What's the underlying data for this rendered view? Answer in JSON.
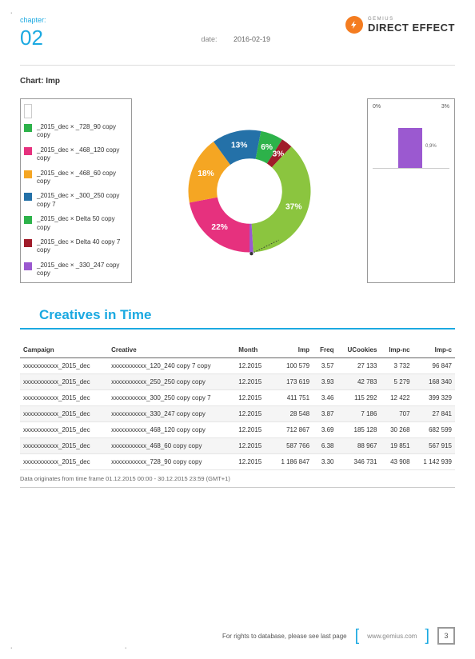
{
  "header": {
    "chapter_label": "chapter:",
    "chapter_num": "02",
    "date_label": "date:",
    "date_value": "2016-02-19",
    "logo_sub": "GEMIUS",
    "logo_main": "DIRECT EFFECT"
  },
  "chart": {
    "title": "Chart: Imp",
    "type": "donut",
    "legend": [
      {
        "color": "#2db24a",
        "label": "_2015_dec × _728_90 copy copy"
      },
      {
        "color": "#e6317e",
        "label": "_2015_dec × _468_120 copy copy"
      },
      {
        "color": "#f5a623",
        "label": "_2015_dec × _468_60 copy copy"
      },
      {
        "color": "#2471a8",
        "label": "_2015_dec × _300_250 copy copy 7"
      },
      {
        "color": "#2db24a",
        "label": "_2015_dec × Delta 50 copy copy"
      },
      {
        "color": "#a01c2a",
        "label": "_2015_dec × Delta 40 copy 7 copy"
      },
      {
        "color": "#9b59d0",
        "label": "_2015_dec × _330_247 copy copy"
      }
    ],
    "slices": [
      {
        "label": "22%",
        "value": 22,
        "color": "#e6317e"
      },
      {
        "label": "18%",
        "value": 18,
        "color": "#f5a623"
      },
      {
        "label": "13%",
        "value": 13,
        "color": "#2471a8"
      },
      {
        "label": "6%",
        "value": 6,
        "color": "#2db24a"
      },
      {
        "label": "3%",
        "value": 3,
        "color": "#a01c2a"
      },
      {
        "label": "37%",
        "value": 37,
        "color": "#8bc53f"
      },
      {
        "label": "",
        "value": 1,
        "color": "#9b59d0"
      }
    ],
    "inner_radius_pct": 48,
    "mini": {
      "left_label": "0%",
      "right_label": "3%",
      "bar_value_pct": 30,
      "bar_color": "#9b59d0",
      "bar_label": "0,9%"
    }
  },
  "table": {
    "section_title": "Creatives in Time",
    "columns": [
      "Campaign",
      "Creative",
      "Month",
      "Imp",
      "Freq",
      "UCookies",
      "Imp-nc",
      "Imp-c"
    ],
    "rows": [
      [
        "xxxxxxxxxxx_2015_dec",
        "xxxxxxxxxxx_120_240 copy 7 copy",
        "12.2015",
        "100 579",
        "3.57",
        "27 133",
        "3 732",
        "96 847"
      ],
      [
        "xxxxxxxxxxx_2015_dec",
        "xxxxxxxxxxx_250_250 copy copy",
        "12.2015",
        "173 619",
        "3.93",
        "42 783",
        "5 279",
        "168 340"
      ],
      [
        "xxxxxxxxxxx_2015_dec",
        "xxxxxxxxxxx_300_250 copy copy 7",
        "12.2015",
        "411 751",
        "3.46",
        "115 292",
        "12 422",
        "399 329"
      ],
      [
        "xxxxxxxxxxx_2015_dec",
        "xxxxxxxxxxx_330_247 copy copy",
        "12.2015",
        "28 548",
        "3.87",
        "7 186",
        "707",
        "27 841"
      ],
      [
        "xxxxxxxxxxx_2015_dec",
        "xxxxxxxxxxx_468_120 copy copy",
        "12.2015",
        "712 867",
        "3.69",
        "185 128",
        "30 268",
        "682 599"
      ],
      [
        "xxxxxxxxxxx_2015_dec",
        "xxxxxxxxxxx_468_60 copy copy",
        "12.2015",
        "587 766",
        "6.38",
        "88 967",
        "19 851",
        "567 915"
      ],
      [
        "xxxxxxxxxxx_2015_dec",
        "xxxxxxxxxxx_728_90 copy copy",
        "12.2015",
        "1 186 847",
        "3.30",
        "346 731",
        "43 908",
        "1 142 939"
      ]
    ],
    "note": "Data originates from time frame 01.12.2015 00:00 - 30.12.2015 23:59 (GMT+1)"
  },
  "footer": {
    "rights": "For rights to database, please see last page",
    "url": "www.gemius.com",
    "page": "3"
  }
}
